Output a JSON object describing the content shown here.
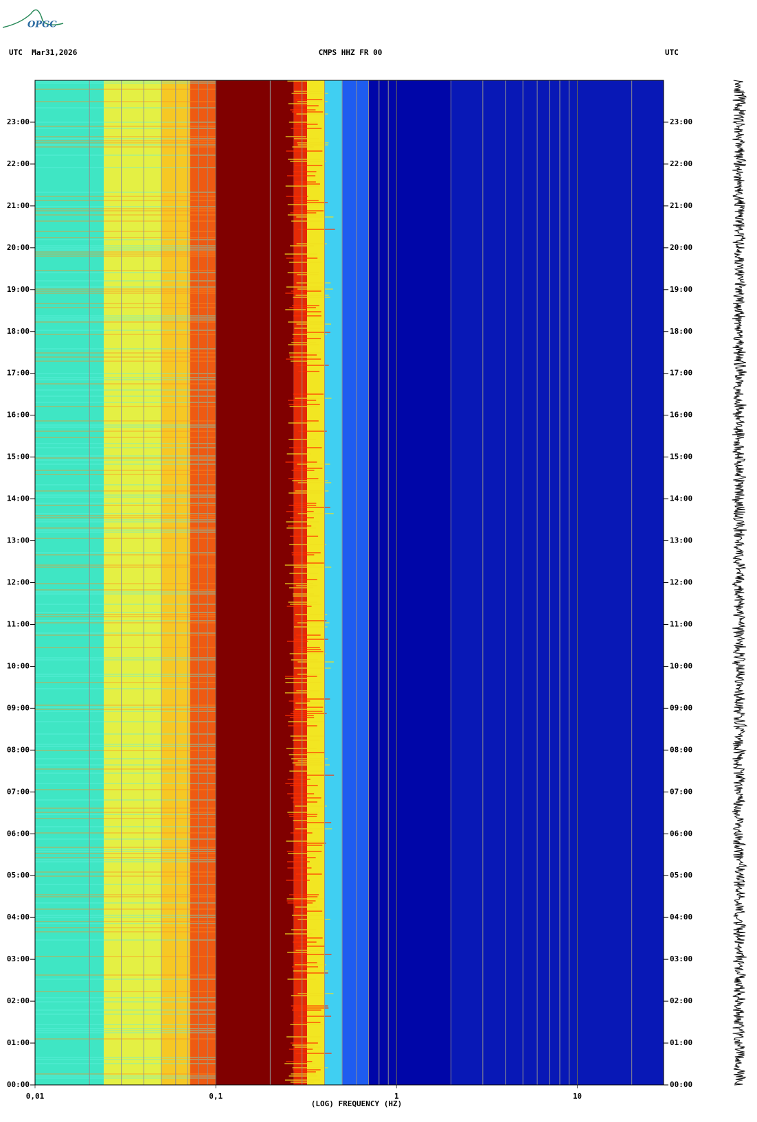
{
  "chart_data": {
    "type": "spectrogram",
    "logo": "OPGC",
    "title": "CMPS HHZ FR 00",
    "left_header": "UTC  Mar31,2026",
    "right_header": "UTC",
    "xlabel": "(LOG) FREQUENCY (HZ)",
    "xscale": "log",
    "xlim": [
      0.01,
      30
    ],
    "xticks": [
      {
        "value": 0.01,
        "label": "0,01"
      },
      {
        "value": 0.1,
        "label": "0,1"
      },
      1,
      10
    ],
    "x_minor_grid": [
      0.02,
      0.03,
      0.04,
      0.05,
      0.06,
      0.07,
      0.08,
      0.09,
      0.2,
      0.3,
      0.4,
      0.5,
      0.6,
      0.7,
      0.8,
      0.9,
      2,
      3,
      4,
      5,
      6,
      7,
      8,
      9,
      20
    ],
    "ylim": [
      0,
      24
    ],
    "yticks": [
      {
        "value": 0,
        "label": "00:00"
      },
      {
        "value": 1,
        "label": "01:00"
      },
      {
        "value": 2,
        "label": "02:00"
      },
      {
        "value": 3,
        "label": "03:00"
      },
      {
        "value": 4,
        "label": "04:00"
      },
      {
        "value": 5,
        "label": "05:00"
      },
      {
        "value": 6,
        "label": "06:00"
      },
      {
        "value": 7,
        "label": "07:00"
      },
      {
        "value": 8,
        "label": "08:00"
      },
      {
        "value": 9,
        "label": "09:00"
      },
      {
        "value": 10,
        "label": "10:00"
      },
      {
        "value": 11,
        "label": "11:00"
      },
      {
        "value": 12,
        "label": "12:00"
      },
      {
        "value": 13,
        "label": "13:00"
      },
      {
        "value": 14,
        "label": "14:00"
      },
      {
        "value": 15,
        "label": "15:00"
      },
      {
        "value": 16,
        "label": "16:00"
      },
      {
        "value": 17,
        "label": "17:00"
      },
      {
        "value": 18,
        "label": "18:00"
      },
      {
        "value": 19,
        "label": "19:00"
      },
      {
        "value": 20,
        "label": "20:00"
      },
      {
        "value": 21,
        "label": "21:00"
      },
      {
        "value": 22,
        "label": "22:00"
      },
      {
        "value": 23,
        "label": "23:00"
      }
    ],
    "band_edges": [
      0.01,
      0.024,
      0.05,
      0.072,
      0.1,
      0.27,
      0.32,
      0.4,
      0.5,
      0.7,
      2,
      30
    ],
    "band_colors": [
      "#3fe6c4",
      "#e4f044",
      "#f6c824",
      "#ee5a12",
      "#800000",
      "#e42a06",
      "#f2e622",
      "#40cff2",
      "#1e5cf0",
      "#0006a8",
      "#0818b6"
    ]
  }
}
